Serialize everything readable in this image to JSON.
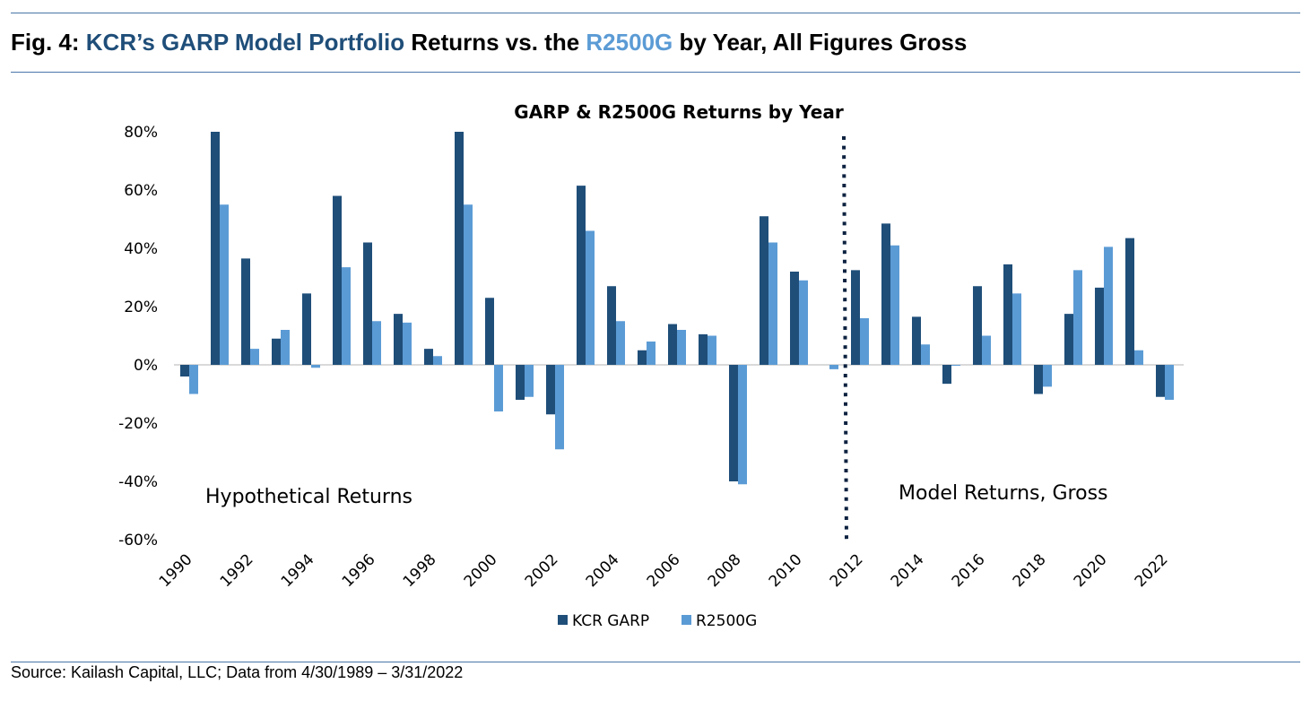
{
  "header": {
    "prefix": "Fig. 4: ",
    "highlight1": "KCR’s GARP Model Portfolio",
    "middle": " Returns vs. the ",
    "highlight2": "R2500G",
    "suffix": " by Year, All Figures Gross"
  },
  "footer": {
    "source": "Source: Kailash Capital, LLC; Data from 4/30/1989 – 3/31/2022"
  },
  "colors": {
    "garp": "#1f4e79",
    "r2500g": "#5b9bd5",
    "divider": "#0d2240",
    "axis": "#d9d9d9"
  },
  "chart_data": {
    "type": "bar",
    "title": "GARP & R2500G Returns by Year",
    "xlabel": "",
    "ylabel": "",
    "ylim": [
      -60,
      80
    ],
    "yticks": [
      "80%",
      "60%",
      "40%",
      "20%",
      "0%",
      "-20%",
      "-40%",
      "-60%"
    ],
    "ytick_values": [
      80,
      60,
      40,
      20,
      0,
      -20,
      -40,
      -60
    ],
    "categories": [
      1990,
      1991,
      1992,
      1993,
      1994,
      1995,
      1996,
      1997,
      1998,
      1999,
      2000,
      2001,
      2002,
      2003,
      2004,
      2005,
      2006,
      2007,
      2008,
      2009,
      2010,
      2011,
      2012,
      2013,
      2014,
      2015,
      2016,
      2017,
      2018,
      2019,
      2020,
      2021,
      2022
    ],
    "xtick_labels": [
      "1990",
      "1992",
      "1994",
      "1996",
      "1998",
      "2000",
      "2002",
      "2004",
      "2006",
      "2008",
      "2010",
      "2012",
      "2014",
      "2016",
      "2018",
      "2020",
      "2022"
    ],
    "series": [
      {
        "name": "KCR GARP",
        "values": [
          -4,
          80,
          36.5,
          9,
          24.5,
          58,
          42,
          17.5,
          5.5,
          80,
          23,
          -12,
          -17,
          61.5,
          27,
          5,
          14,
          10.5,
          -40,
          51,
          32,
          0,
          32.5,
          48.5,
          16.5,
          -6.5,
          27,
          34.5,
          -10,
          17.5,
          26.5,
          43.5,
          -11
        ]
      },
      {
        "name": "R2500G",
        "values": [
          -10,
          55,
          5.5,
          12,
          -1,
          33.5,
          15,
          14.5,
          3,
          55,
          -16,
          -11,
          -29,
          46,
          15,
          8,
          12,
          10,
          -41,
          42,
          29,
          -1.5,
          16,
          41,
          7,
          -0.3,
          10,
          24.5,
          -7.5,
          32.5,
          40.5,
          5,
          -12
        ]
      }
    ],
    "divider_after": 2011,
    "annotations": [
      {
        "text": "Hypothetical Returns",
        "region": "left"
      },
      {
        "text": "Model Returns, Gross",
        "region": "right"
      }
    ],
    "legend": {
      "position": "bottom",
      "entries": [
        "KCR GARP",
        "R2500G"
      ]
    },
    "grid": false
  }
}
